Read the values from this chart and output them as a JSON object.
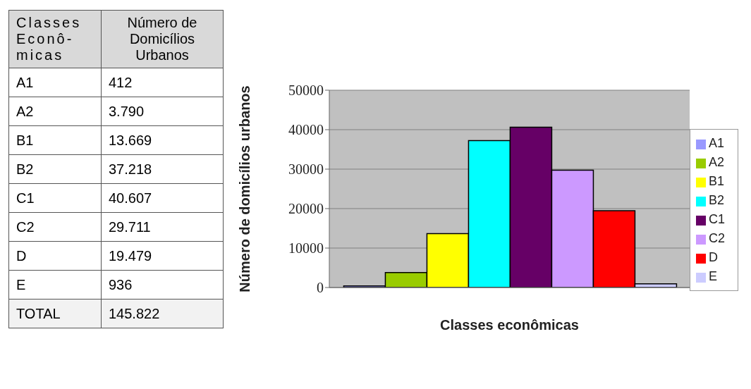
{
  "chart_data": [
    {
      "type": "other",
      "annotations": [
        "Classes Econô-micas",
        "Número de Domicílios Urbanos",
        "A1",
        "412",
        "A2",
        "3.790",
        "B1",
        "13.669",
        "B2",
        "37.218",
        "C1",
        "40.607",
        "C2",
        "29.711",
        "D",
        "19.479",
        "E",
        "936",
        "TOTAL",
        "145.822"
      ]
    },
    {
      "type": "bar",
      "xlabel": "Classes econômicas",
      "ylabel": "Número de domicílios urbanos",
      "categories": [
        null
      ],
      "series": [
        {
          "name": "A1",
          "color": "#9999ff",
          "values": [
            412
          ]
        },
        {
          "name": "A2",
          "color": "#99cc00",
          "values": [
            3790
          ]
        },
        {
          "name": "B1",
          "color": "#ffff00",
          "values": [
            13669
          ]
        },
        {
          "name": "B2",
          "color": "#00ffff",
          "values": [
            37218
          ]
        },
        {
          "name": "C1",
          "color": "#660066",
          "values": [
            40607
          ]
        },
        {
          "name": "C2",
          "color": "#cc99ff",
          "values": [
            29711
          ]
        },
        {
          "name": "D",
          "color": "#ff0000",
          "values": [
            19479
          ]
        },
        {
          "name": "E",
          "color": "#ccccff",
          "values": [
            936
          ]
        }
      ],
      "ylim": [
        0,
        50000
      ],
      "yticks": [
        0,
        10000,
        20000,
        30000,
        40000,
        50000
      ],
      "grid": "y",
      "legend": "right",
      "tick_labels": "y"
    }
  ]
}
